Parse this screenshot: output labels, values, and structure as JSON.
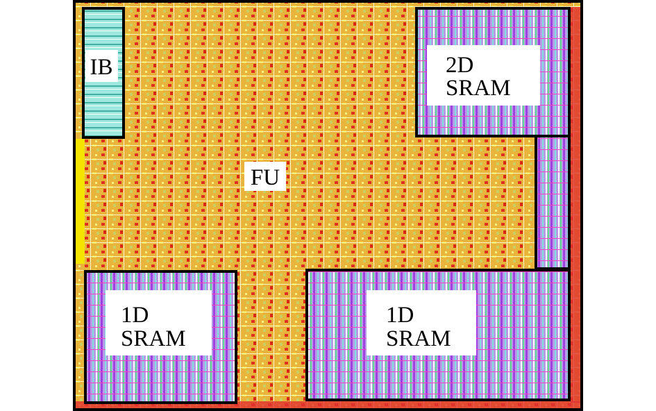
{
  "blocks": [
    {
      "label": [
        "IB"
      ]
    },
    {
      "label": [
        "FU"
      ]
    },
    {
      "label": [
        "2D",
        "SRAM"
      ]
    },
    {
      "label": [
        "1D",
        "SRAM"
      ]
    },
    {
      "label": [
        "1D",
        "SRAM"
      ]
    }
  ]
}
